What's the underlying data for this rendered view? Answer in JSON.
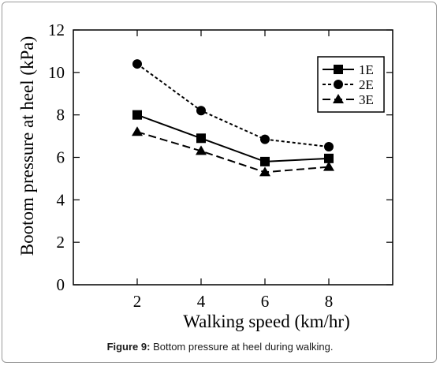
{
  "chart_data": {
    "type": "line",
    "xlabel": "Walking speed (km/hr)",
    "ylabel": "Bootom pressure at heel (kPa)",
    "xlim": [
      0,
      10
    ],
    "ylim": [
      0,
      12
    ],
    "xticks": [
      2,
      4,
      6,
      8
    ],
    "yticks": [
      0,
      2,
      4,
      6,
      8,
      10,
      12
    ],
    "x": [
      2,
      4,
      6,
      8
    ],
    "series": [
      {
        "name": "1E",
        "values": [
          8.0,
          6.9,
          5.8,
          5.95
        ],
        "marker": "square",
        "dash": "solid"
      },
      {
        "name": "2E",
        "values": [
          10.4,
          8.2,
          6.85,
          6.5
        ],
        "marker": "circle",
        "dash": "dotted"
      },
      {
        "name": "3E",
        "values": [
          7.2,
          6.3,
          5.3,
          5.55
        ],
        "marker": "triangle",
        "dash": "dashed"
      }
    ],
    "legend_position": "top-right",
    "grid": false
  },
  "caption": {
    "label": "Figure 9:",
    "text": " Bottom pressure at heel during walking."
  }
}
